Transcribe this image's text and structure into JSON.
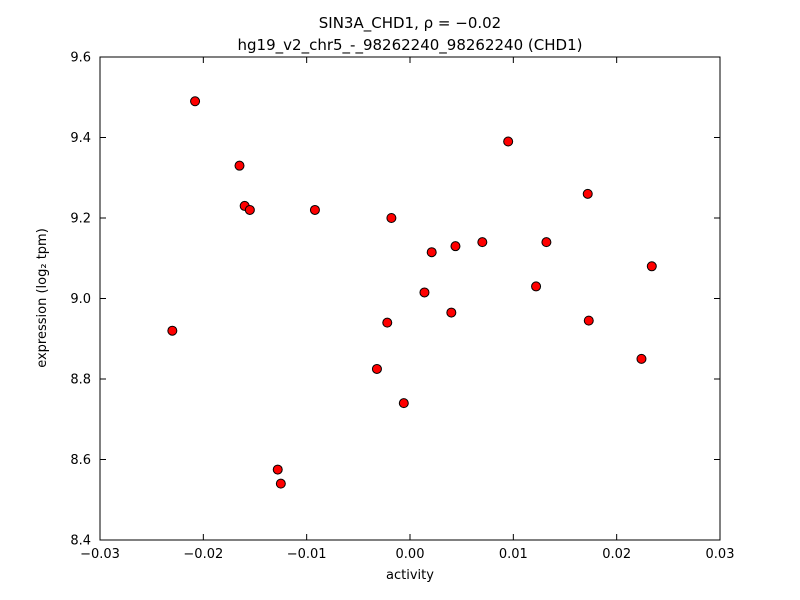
{
  "figure": {
    "background": "#ffffff",
    "frame_color": "#000000"
  },
  "chart_data": {
    "type": "scatter",
    "title": "SIN3A_CHD1, ρ = −0.02",
    "subtitle": "hg19_v2_chr5_-_98262240_98262240 (CHD1)",
    "xlabel": "activity",
    "ylabel": "expression (log₂ tpm)",
    "xlim": [
      -0.03,
      0.03
    ],
    "ylim": [
      8.4,
      9.6
    ],
    "grid": false,
    "legend": "none",
    "xticks": {
      "values": [
        -0.03,
        -0.02,
        -0.01,
        0.0,
        0.01,
        0.02,
        0.03
      ],
      "labels": [
        "−0.03",
        "−0.02",
        "−0.01",
        "0.00",
        "0.01",
        "0.02",
        "0.03"
      ]
    },
    "yticks": {
      "values": [
        8.4,
        8.6,
        8.8,
        9.0,
        9.2,
        9.4,
        9.6
      ],
      "labels": [
        "8.4",
        "8.6",
        "8.8",
        "9.0",
        "9.2",
        "9.4",
        "9.6"
      ]
    },
    "marker": {
      "shape": "circle",
      "color": "#ff0000",
      "edge_color": "#000000",
      "radius": 4.5
    },
    "points": [
      [
        -0.023,
        8.92
      ],
      [
        -0.0208,
        9.49
      ],
      [
        -0.0165,
        9.33
      ],
      [
        -0.016,
        9.23
      ],
      [
        -0.0155,
        9.22
      ],
      [
        -0.0128,
        8.575
      ],
      [
        -0.0125,
        8.54
      ],
      [
        -0.0092,
        9.22
      ],
      [
        -0.0032,
        8.825
      ],
      [
        -0.0022,
        8.94
      ],
      [
        -0.0018,
        9.2
      ],
      [
        -0.0006,
        8.74
      ],
      [
        0.0014,
        9.015
      ],
      [
        0.0021,
        9.115
      ],
      [
        0.004,
        8.965
      ],
      [
        0.0044,
        9.13
      ],
      [
        0.007,
        9.14
      ],
      [
        0.0095,
        9.39
      ],
      [
        0.0122,
        9.03
      ],
      [
        0.0132,
        9.14
      ],
      [
        0.0172,
        9.26
      ],
      [
        0.0173,
        8.945
      ],
      [
        0.0224,
        8.85
      ],
      [
        0.0234,
        9.08
      ]
    ]
  }
}
